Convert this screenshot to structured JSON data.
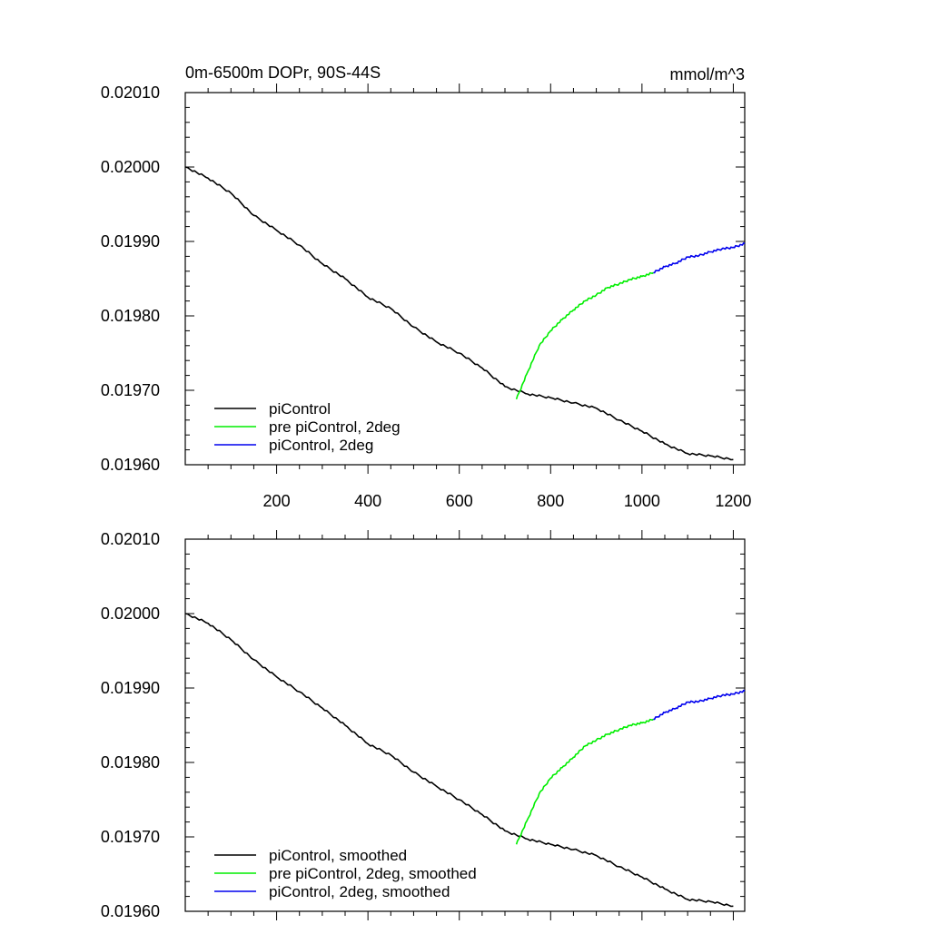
{
  "chart_data": [
    {
      "type": "line",
      "title_left": "0m-6500m DOPr, 90S-44S",
      "title_right": "mmol/m^3",
      "xlim": [
        0,
        1225
      ],
      "ylim": [
        0.0196,
        0.0201
      ],
      "xticks": [
        200,
        400,
        600,
        800,
        1000,
        1200
      ],
      "xtick_labels": [
        "200",
        "400",
        "600",
        "800",
        "1000",
        "1200"
      ],
      "yticks": [
        0.0196,
        0.0197,
        0.0198,
        0.0199,
        0.02,
        0.0201
      ],
      "ytick_labels": [
        "0.01960",
        "0.01970",
        "0.01980",
        "0.01990",
        "0.02000",
        "0.02010"
      ],
      "legend_position": "bottom-left",
      "series": [
        {
          "name": "piControl",
          "color": "#000000",
          "x": [
            1,
            50,
            100,
            150,
            200,
            250,
            300,
            350,
            400,
            450,
            500,
            550,
            600,
            650,
            700,
            750,
            800,
            850,
            900,
            950,
            1000,
            1050,
            1100,
            1150,
            1200
          ],
          "y": [
            0.02,
            0.019985,
            0.019965,
            0.019935,
            0.019915,
            0.019895,
            0.01987,
            0.01985,
            0.019825,
            0.01981,
            0.019785,
            0.019765,
            0.01975,
            0.01973,
            0.019705,
            0.019695,
            0.01969,
            0.019683,
            0.019676,
            0.01966,
            0.019645,
            0.019628,
            0.019615,
            0.019612,
            0.019607
          ]
        },
        {
          "name": "pre piControl, 2deg",
          "color": "#00ee00",
          "x": [
            725,
            750,
            775,
            800,
            825,
            850,
            875,
            900,
            925,
            950,
            975,
            1000,
            1025
          ],
          "y": [
            0.019688,
            0.019725,
            0.01976,
            0.01978,
            0.019795,
            0.019808,
            0.01982,
            0.019828,
            0.019838,
            0.019843,
            0.019849,
            0.019853,
            0.019858
          ]
        },
        {
          "name": "piControl, 2deg",
          "color": "#0000ee",
          "x": [
            1025,
            1050,
            1075,
            1100,
            1125,
            1150,
            1175,
            1200,
            1225
          ],
          "y": [
            0.019858,
            0.019866,
            0.019871,
            0.019879,
            0.019881,
            0.019886,
            0.01989,
            0.019892,
            0.019897
          ]
        }
      ]
    },
    {
      "type": "line",
      "xlim": [
        0,
        1225
      ],
      "ylim": [
        0.0196,
        0.0201
      ],
      "xticks": [
        200,
        400,
        600,
        800,
        1000,
        1200
      ],
      "yticks": [
        0.0196,
        0.0197,
        0.0198,
        0.0199,
        0.02,
        0.0201
      ],
      "ytick_labels": [
        "0.01960",
        "0.01970",
        "0.01980",
        "0.01990",
        "0.02000",
        "0.02010"
      ],
      "legend_position": "bottom-left",
      "series": [
        {
          "name": "piControl, smoothed",
          "color": "#000000",
          "x": [
            1,
            50,
            100,
            150,
            200,
            250,
            300,
            350,
            400,
            450,
            500,
            550,
            600,
            650,
            700,
            750,
            800,
            850,
            900,
            950,
            1000,
            1050,
            1100,
            1150,
            1200
          ],
          "y": [
            0.02,
            0.019987,
            0.019965,
            0.019938,
            0.019915,
            0.019895,
            0.019873,
            0.01985,
            0.019825,
            0.01981,
            0.019787,
            0.019768,
            0.01975,
            0.01973,
            0.019708,
            0.019697,
            0.01969,
            0.019683,
            0.019675,
            0.01966,
            0.019646,
            0.01963,
            0.019616,
            0.019613,
            0.019607
          ]
        },
        {
          "name": "pre piControl, 2deg, smoothed",
          "color": "#00ee00",
          "x": [
            725,
            750,
            775,
            800,
            825,
            850,
            875,
            900,
            925,
            950,
            975,
            1000,
            1025
          ],
          "y": [
            0.01969,
            0.019724,
            0.019758,
            0.019779,
            0.019793,
            0.019807,
            0.019822,
            0.01983,
            0.019838,
            0.019844,
            0.01985,
            0.019853,
            0.019858
          ]
        },
        {
          "name": "piControl, 2deg, smoothed",
          "color": "#0000ee",
          "x": [
            1025,
            1050,
            1075,
            1100,
            1125,
            1150,
            1175,
            1200,
            1225
          ],
          "y": [
            0.019858,
            0.019867,
            0.019873,
            0.019881,
            0.019882,
            0.019886,
            0.01989,
            0.019892,
            0.019896
          ]
        }
      ]
    }
  ]
}
